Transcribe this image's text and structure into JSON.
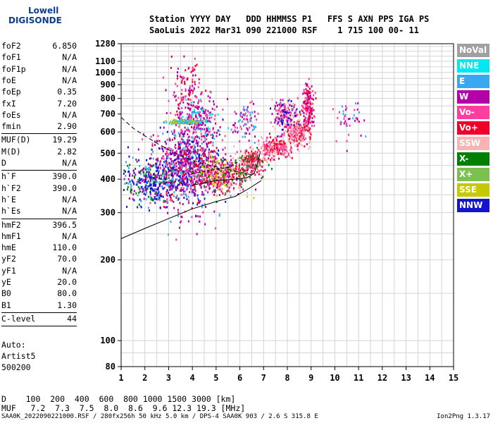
{
  "logo": {
    "line1": "Lowell",
    "line2": "DIGISONDE"
  },
  "header": {
    "line1": "Station YYYY DAY   DDD HHMMSS P1   FFS S AXN PPS IGA PS",
    "line2": "SaoLuis 2022 Mar31 090 221000 RSF    1 715 100 00- 11"
  },
  "params": [
    {
      "name": "foF2",
      "value": "6.850"
    },
    {
      "name": "foF1",
      "value": "N/A"
    },
    {
      "name": "foF1p",
      "value": "N/A"
    },
    {
      "name": "foE",
      "value": "N/A"
    },
    {
      "name": "foEp",
      "value": "0.35"
    },
    {
      "name": "fxI",
      "value": "7.20"
    },
    {
      "name": "foEs",
      "value": "N/A"
    },
    {
      "name": "fmin",
      "value": "2.90"
    },
    {
      "name": "MUF(D)",
      "value": "19.29"
    },
    {
      "name": "M(D)",
      "value": "2.82"
    },
    {
      "name": "D",
      "value": "N/A"
    },
    {
      "name": "h`F",
      "value": "390.0"
    },
    {
      "name": "h`F2",
      "value": "390.0"
    },
    {
      "name": "h`E",
      "value": "N/A"
    },
    {
      "name": "h`Es",
      "value": "N/A"
    },
    {
      "name": "hmF2",
      "value": "396.5"
    },
    {
      "name": "hmF1",
      "value": "N/A"
    },
    {
      "name": "hmE",
      "value": "110.0"
    },
    {
      "name": "yF2",
      "value": "70.0"
    },
    {
      "name": "yF1",
      "value": "N/A"
    },
    {
      "name": "yE",
      "value": "20.0"
    },
    {
      "name": "B0",
      "value": "80.0"
    },
    {
      "name": "B1",
      "value": "1.30"
    },
    {
      "name": "C-level",
      "value": "44"
    }
  ],
  "misc": {
    "auto": "Auto:",
    "artist": "Artist5",
    "code": "500200"
  },
  "bottom": {
    "d_row": "D    100  200  400  600  800 1000 1500 3000 [km]",
    "muf_row": "MUF   7.2  7.3  7.5  8.0  8.6  9.6 12.3 19.3 [MHz]"
  },
  "footer": {
    "left": "SAA0K_2022090221000.RSF / 280fx256h 50 kHz 5.0 km / DPS-4 SAA0K 903 / 2.6 S 315.8 E",
    "right": "Ion2Png 1.3.17"
  },
  "legend": [
    {
      "label": "NoVal",
      "color": "#a0a0a0"
    },
    {
      "label": "NNE",
      "color": "#00e8f0"
    },
    {
      "label": "E",
      "color": "#3aa8f0"
    },
    {
      "label": "W",
      "color": "#b400a8"
    },
    {
      "label": "Vo-",
      "color": "#ff3ca0"
    },
    {
      "label": "Vo+",
      "color": "#f00028"
    },
    {
      "label": "SSW",
      "color": "#f8b4b4"
    },
    {
      "label": "X-",
      "color": "#008000"
    },
    {
      "label": "X+",
      "color": "#7cc050"
    },
    {
      "label": "SSE",
      "color": "#c8c800"
    },
    {
      "label": "NNW",
      "color": "#1414d0"
    }
  ],
  "chart_data": {
    "type": "scatter",
    "xlim": [
      1,
      15
    ],
    "ylim": [
      80,
      1280
    ],
    "y_scale": "log",
    "x_ticks": [
      "1",
      "2",
      "3",
      "4",
      "5",
      "6",
      "7",
      "8",
      "9",
      "10",
      "11",
      "12",
      "13",
      "14",
      "15"
    ],
    "y_ticks": [
      80,
      100,
      200,
      300,
      400,
      500,
      600,
      700,
      800,
      900,
      1000,
      1100,
      1280
    ],
    "grid": true,
    "legend_position": "right",
    "curves": {
      "profile_solid_low": [
        [
          1,
          240
        ],
        [
          2,
          262
        ],
        [
          3,
          285
        ],
        [
          4,
          310
        ],
        [
          5,
          330
        ],
        [
          5.8,
          345
        ],
        [
          6.4,
          370
        ],
        [
          6.9,
          395
        ]
      ],
      "profile_solid_upper": [
        [
          4,
          380
        ],
        [
          5,
          395
        ],
        [
          5.8,
          400
        ],
        [
          6.3,
          405
        ],
        [
          6.6,
          420
        ],
        [
          6.75,
          460
        ],
        [
          6.85,
          500
        ]
      ],
      "extrapolated_dashed": [
        [
          1,
          680
        ],
        [
          1.5,
          620
        ],
        [
          2,
          580
        ],
        [
          2.5,
          545
        ],
        [
          3,
          515
        ],
        [
          3.5,
          490
        ],
        [
          4,
          470
        ],
        [
          4.5,
          455
        ],
        [
          5,
          445
        ],
        [
          5.5,
          435
        ],
        [
          6,
          425
        ],
        [
          6.5,
          415
        ]
      ],
      "dashed_small": [
        [
          4,
          420
        ],
        [
          5,
          435
        ],
        [
          5.6,
          445
        ],
        [
          6,
          470
        ]
      ]
    },
    "clusters": [
      {
        "cx": 3.7,
        "cy": 450,
        "sx": 0.7,
        "sy": 70,
        "n": 900,
        "colors": [
          "#b400a8",
          "#b400a8",
          "#ff3ca0",
          "#1414d0",
          "#f00028",
          "#3aa8f0"
        ]
      },
      {
        "cx": 2.2,
        "cy": 390,
        "sx": 0.6,
        "sy": 35,
        "n": 350,
        "colors": [
          "#1414d0",
          "#1414d0",
          "#b400a8",
          "#3aa8f0",
          "#008000"
        ]
      },
      {
        "cx": 4.2,
        "cy": 680,
        "sx": 0.5,
        "sy": 60,
        "n": 250,
        "colors": [
          "#b400a8",
          "#b400a8",
          "#ff3ca0",
          "#00e8f0"
        ]
      },
      {
        "cx": 3.8,
        "cy": 860,
        "sx": 0.35,
        "sy": 120,
        "n": 120,
        "colors": [
          "#b400a8",
          "#ff3ca0",
          "#f00028"
        ]
      },
      {
        "cx": 5.2,
        "cy": 420,
        "sx": 0.6,
        "sy": 30,
        "n": 450,
        "colors": [
          "#ff3ca0",
          "#f00028",
          "#008000",
          "#c8c800",
          "#f8b4b4",
          "#b400a8"
        ]
      },
      {
        "cx": 6.5,
        "cy": 470,
        "sx": 0.3,
        "sy": 25,
        "n": 250,
        "colors": [
          "#ff3ca0",
          "#f00028",
          "#f8b4b4",
          "#008000"
        ]
      },
      {
        "cx": 7.5,
        "cy": 530,
        "sx": 0.35,
        "sy": 22,
        "n": 250,
        "colors": [
          "#f8b4b4",
          "#ff3ca0",
          "#f00028"
        ]
      },
      {
        "cx": 8.4,
        "cy": 600,
        "sx": 0.22,
        "sy": 30,
        "n": 220,
        "colors": [
          "#f8b4b4",
          "#ff3ca0",
          "#f00028"
        ]
      },
      {
        "cx": 7.9,
        "cy": 700,
        "sx": 0.25,
        "sy": 50,
        "n": 200,
        "colors": [
          "#b400a8",
          "#ff3ca0",
          "#1414d0",
          "#f8b4b4"
        ]
      },
      {
        "cx": 8.85,
        "cy": 750,
        "sx": 0.12,
        "sy": 70,
        "n": 160,
        "colors": [
          "#b400a8",
          "#ff3ca0",
          "#f00028"
        ]
      },
      {
        "cx": 6.2,
        "cy": 660,
        "sx": 0.25,
        "sy": 50,
        "n": 80,
        "colors": [
          "#b400a8",
          "#ff3ca0",
          "#3aa8f0"
        ]
      },
      {
        "cx": 3.6,
        "cy": 660,
        "sx": 0.4,
        "sy": 5,
        "n": 150,
        "colors": [
          "#3aa8f0",
          "#00e8f0",
          "#7cc050",
          "#c8c800"
        ]
      },
      {
        "cx": 10.6,
        "cy": 680,
        "sx": 0.35,
        "sy": 50,
        "n": 45,
        "colors": [
          "#b400a8",
          "#ff3ca0",
          "#3aa8f0"
        ]
      }
    ]
  }
}
